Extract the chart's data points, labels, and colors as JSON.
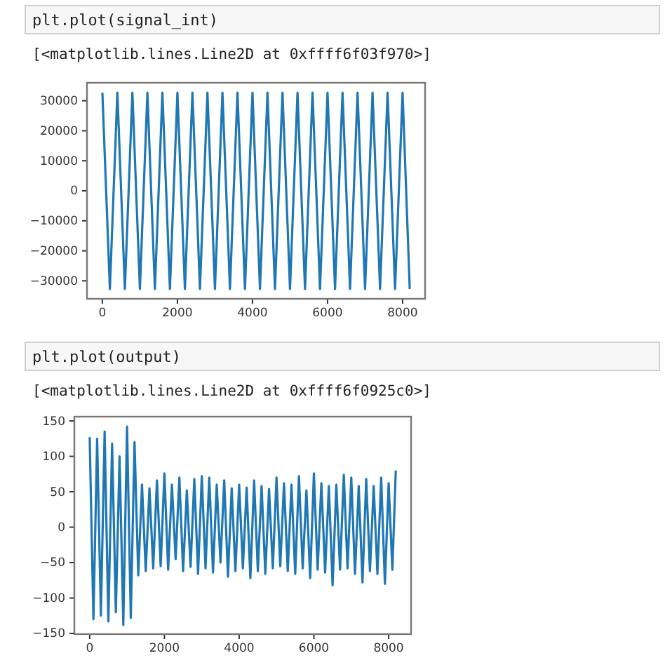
{
  "chart_data": [
    {
      "type": "line",
      "annotations": [
        "plt.plot(signal_int)",
        "[<matplotlib.lines.Line2D at 0xffff6f03f970>]"
      ],
      "xlim": [
        -410,
        8600
      ],
      "xticks": [
        0,
        2000,
        4000,
        6000,
        8000
      ],
      "ylim": [
        -36000,
        36000
      ],
      "yticks": [
        -30000,
        -20000,
        -10000,
        0,
        10000,
        20000,
        30000
      ],
      "grid": false,
      "series": [
        {
          "color": "#1f77b4",
          "x": [
            0,
            200,
            400,
            600,
            800,
            1000,
            1200,
            1400,
            1600,
            1800,
            2000,
            2200,
            2400,
            2600,
            2800,
            3000,
            3200,
            3400,
            3600,
            3800,
            4000,
            4200,
            4400,
            4600,
            4800,
            5000,
            5200,
            5400,
            5600,
            5800,
            6000,
            6200,
            6400,
            6600,
            6800,
            7000,
            7200,
            7400,
            7600,
            7800,
            8000,
            8191
          ],
          "values": [
            32700,
            -32700,
            32700,
            -32700,
            32700,
            -32700,
            32700,
            -32700,
            32700,
            -32700,
            32700,
            -32700,
            32700,
            -32700,
            32700,
            -32700,
            32700,
            -32700,
            32700,
            -32700,
            32700,
            -32700,
            32700,
            -32700,
            32700,
            -32700,
            32700,
            -32700,
            32700,
            -32700,
            32700,
            -32700,
            32700,
            -32700,
            32700,
            -32700,
            32700,
            -32700,
            32700,
            -32700,
            32700,
            -32700
          ]
        }
      ]
    },
    {
      "type": "line",
      "annotations": [
        "plt.plot(output)",
        "[<matplotlib.lines.Line2D at 0xffff6f0925c0>]"
      ],
      "xlim": [
        -410,
        8600
      ],
      "xticks": [
        0,
        2000,
        4000,
        6000,
        8000
      ],
      "ylim": [
        -151,
        156
      ],
      "yticks": [
        -150,
        -100,
        -50,
        0,
        50,
        100,
        150
      ],
      "grid": false,
      "series": [
        {
          "color": "#1f77b4",
          "x": [
            0,
            100,
            200,
            300,
            400,
            500,
            600,
            700,
            800,
            900,
            1000,
            1100,
            1200,
            1300,
            1400,
            1500,
            1600,
            1700,
            1800,
            1900,
            2000,
            2100,
            2200,
            2300,
            2400,
            2500,
            2600,
            2700,
            2800,
            2900,
            3000,
            3100,
            3200,
            3300,
            3400,
            3500,
            3600,
            3700,
            3800,
            3900,
            4000,
            4100,
            4200,
            4300,
            4400,
            4500,
            4600,
            4700,
            4800,
            4900,
            5000,
            5100,
            5200,
            5300,
            5400,
            5500,
            5600,
            5700,
            5800,
            5900,
            6000,
            6100,
            6200,
            6300,
            6400,
            6500,
            6600,
            6700,
            6800,
            6900,
            7000,
            7100,
            7200,
            7300,
            7400,
            7500,
            7600,
            7700,
            7800,
            7900,
            8000,
            8100,
            8191
          ],
          "values": [
            127,
            -130,
            125,
            -125,
            135,
            -133,
            118,
            -120,
            100,
            -138,
            142,
            -128,
            120,
            -68,
            60,
            -62,
            55,
            -58,
            66,
            -55,
            76,
            -60,
            60,
            -45,
            70,
            -62,
            52,
            -56,
            68,
            -66,
            72,
            -58,
            70,
            -64,
            60,
            -50,
            66,
            -70,
            55,
            -62,
            60,
            -58,
            56,
            -72,
            66,
            -62,
            58,
            -66,
            54,
            -58,
            70,
            -55,
            62,
            -62,
            60,
            -66,
            72,
            -58,
            52,
            -72,
            76,
            -60,
            62,
            -64,
            58,
            -82,
            60,
            -60,
            74,
            -58,
            70,
            -66,
            58,
            -78,
            68,
            -62,
            58,
            -66,
            70,
            -80,
            62,
            -60,
            80
          ]
        }
      ]
    }
  ]
}
